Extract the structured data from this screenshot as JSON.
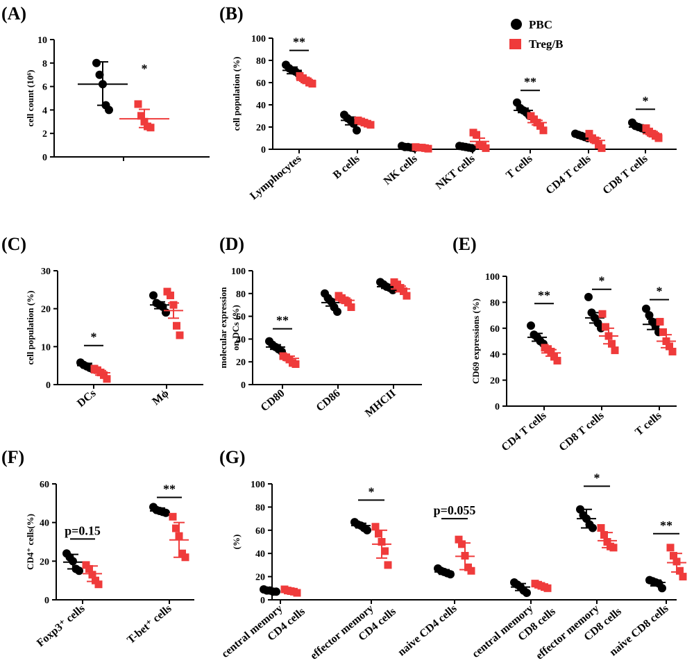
{
  "colors": {
    "pbc": "#000000",
    "treg": "#ef3b3b"
  },
  "legend": {
    "pbc": "PBC",
    "treg": "Treg/B",
    "position": "top-right of panel B"
  },
  "chart_data": [
    {
      "id": "A",
      "panel_label": "(A)",
      "type": "scatter",
      "ylabel": "cell count (10⁶)",
      "ylim": [
        0,
        10
      ],
      "yticks": [
        0,
        2,
        4,
        6,
        8,
        10
      ],
      "categories": [
        {
          "label": [
            "",
            ""
          ]
        }
      ],
      "groups": [
        {
          "cat": 0,
          "series": "pbc",
          "points": [
            8.0,
            7.0,
            6.2,
            4.4,
            4.0
          ],
          "mean": 6.2,
          "upper": 8.1,
          "lower": 4.4,
          "whisker": "sd"
        },
        {
          "cat": 0,
          "series": "treg",
          "points": [
            4.5,
            3.5,
            3.0,
            2.6,
            2.5
          ],
          "mean": 3.25,
          "upper": 4.05,
          "lower": 2.5,
          "whisker": "sd"
        }
      ],
      "significance": [
        {
          "text": "*",
          "cat": 0,
          "series": "treg",
          "y": 6.8,
          "line": false
        }
      ]
    },
    {
      "id": "B",
      "panel_label": "(B)",
      "type": "scatter",
      "ylabel": "cell population (%)",
      "ylim": [
        0,
        100
      ],
      "yticks": [
        0,
        20,
        40,
        60,
        80,
        100
      ],
      "categories": [
        {
          "label": [
            "Lymphocytes"
          ]
        },
        {
          "label": [
            "B cells"
          ]
        },
        {
          "label": [
            "NK cells"
          ]
        },
        {
          "label": [
            "NKT cells"
          ]
        },
        {
          "label": [
            "T cells"
          ]
        },
        {
          "label": [
            "CD4 T cells"
          ]
        },
        {
          "label": [
            "CD8 T cells"
          ]
        }
      ],
      "groups": [
        {
          "cat": 0,
          "series": "pbc",
          "points": [
            76,
            73,
            71,
            70,
            68
          ],
          "mean": 71,
          "upper": 74,
          "lower": 68,
          "whisker": "sem"
        },
        {
          "cat": 0,
          "series": "treg",
          "points": [
            66,
            64,
            62,
            60,
            59
          ],
          "mean": 62,
          "upper": 64,
          "lower": 60,
          "whisker": "sem"
        },
        {
          "cat": 1,
          "series": "pbc",
          "points": [
            31,
            28,
            26,
            23,
            17
          ],
          "mean": 26,
          "upper": 29,
          "lower": 22,
          "whisker": "sem"
        },
        {
          "cat": 1,
          "series": "treg",
          "points": [
            26,
            25,
            24,
            23,
            22
          ],
          "mean": 24,
          "upper": 25.5,
          "lower": 22.5,
          "whisker": "sem"
        },
        {
          "cat": 2,
          "series": "pbc",
          "points": [
            3,
            2,
            2,
            1.5,
            1
          ],
          "mean": 2,
          "upper": 2.5,
          "lower": 1.5,
          "whisker": "sem"
        },
        {
          "cat": 2,
          "series": "treg",
          "points": [
            2,
            1.5,
            1.5,
            1,
            0.5
          ],
          "mean": 1.5,
          "upper": 2,
          "lower": 1,
          "whisker": "sem"
        },
        {
          "cat": 3,
          "series": "pbc",
          "points": [
            3,
            2.5,
            2,
            1.5,
            1
          ],
          "mean": 2.5,
          "upper": 3,
          "lower": 2,
          "whisker": "sem"
        },
        {
          "cat": 3,
          "series": "treg",
          "points": [
            15,
            13,
            4,
            3,
            1
          ],
          "mean": 7,
          "upper": 10,
          "lower": 4,
          "whisker": "sem"
        },
        {
          "cat": 4,
          "series": "pbc",
          "points": [
            42,
            37,
            35,
            33,
            30
          ],
          "mean": 35,
          "upper": 37,
          "lower": 33,
          "whisker": "sem"
        },
        {
          "cat": 4,
          "series": "treg",
          "points": [
            30,
            27,
            24,
            21,
            17
          ],
          "mean": 24,
          "upper": 26,
          "lower": 22,
          "whisker": "sem"
        },
        {
          "cat": 5,
          "series": "pbc",
          "points": [
            14,
            13,
            12,
            11,
            10
          ],
          "mean": 12,
          "upper": 13,
          "lower": 11,
          "whisker": "sem"
        },
        {
          "cat": 5,
          "series": "treg",
          "points": [
            14,
            10,
            8,
            4,
            1
          ],
          "mean": 8,
          "upper": 10,
          "lower": 6,
          "whisker": "sem"
        },
        {
          "cat": 6,
          "series": "pbc",
          "points": [
            24,
            21,
            20,
            19,
            18
          ],
          "mean": 20,
          "upper": 22,
          "lower": 18.5,
          "whisker": "sem"
        },
        {
          "cat": 6,
          "series": "treg",
          "points": [
            19,
            16,
            14,
            12,
            10
          ],
          "mean": 14,
          "upper": 16,
          "lower": 12,
          "whisker": "sem"
        }
      ],
      "significance": [
        {
          "text": "**",
          "cat": 0,
          "y": 89,
          "line": true
        },
        {
          "text": "**",
          "cat": 4,
          "y": 53,
          "line": true
        },
        {
          "text": "*",
          "cat": 6,
          "y": 36,
          "line": true
        }
      ]
    },
    {
      "id": "C",
      "panel_label": "(C)",
      "type": "scatter",
      "ylabel": "cell population (%)",
      "ylim": [
        0,
        30
      ],
      "yticks": [
        0,
        10,
        20,
        30
      ],
      "categories": [
        {
          "label": [
            "DCs"
          ]
        },
        {
          "label": [
            "Mϕ"
          ]
        }
      ],
      "groups": [
        {
          "cat": 0,
          "series": "pbc",
          "points": [
            5.8,
            5.2,
            4.8,
            4.4,
            4.0
          ],
          "mean": 5.0,
          "upper": 5.6,
          "lower": 4.4,
          "whisker": "sem"
        },
        {
          "cat": 0,
          "series": "treg",
          "points": [
            4.2,
            3.8,
            3.2,
            2.5,
            1.5
          ],
          "mean": 3.1,
          "upper": 3.7,
          "lower": 2.5,
          "whisker": "sem"
        },
        {
          "cat": 1,
          "series": "pbc",
          "points": [
            23.5,
            21.5,
            21,
            20.5,
            19
          ],
          "mean": 21,
          "upper": 21.8,
          "lower": 20,
          "whisker": "sem"
        },
        {
          "cat": 1,
          "series": "treg",
          "points": [
            24.5,
            23.5,
            21,
            15.5,
            13
          ],
          "mean": 19.5,
          "upper": 21.5,
          "lower": 17.5,
          "whisker": "sem"
        }
      ],
      "significance": [
        {
          "text": "*",
          "cat": 0,
          "y": 10.3,
          "line": true
        }
      ]
    },
    {
      "id": "D",
      "panel_label": "(D)",
      "type": "scatter",
      "ylabel": [
        "molecular expression",
        "on DCs (%)"
      ],
      "ylim": [
        0,
        100
      ],
      "yticks": [
        0,
        20,
        40,
        60,
        80,
        100
      ],
      "categories": [
        {
          "label": [
            "CD80"
          ]
        },
        {
          "label": [
            "CD86"
          ]
        },
        {
          "label": [
            "MHCII"
          ]
        }
      ],
      "groups": [
        {
          "cat": 0,
          "series": "pbc",
          "points": [
            38,
            35,
            33,
            31,
            29
          ],
          "mean": 33,
          "upper": 35,
          "lower": 31,
          "whisker": "sem"
        },
        {
          "cat": 0,
          "series": "treg",
          "points": [
            25,
            24,
            22,
            19,
            18
          ],
          "mean": 23,
          "upper": 25,
          "lower": 21,
          "whisker": "sem"
        },
        {
          "cat": 1,
          "series": "pbc",
          "points": [
            80,
            76,
            73,
            68,
            64
          ],
          "mean": 72,
          "upper": 75,
          "lower": 69,
          "whisker": "sem"
        },
        {
          "cat": 1,
          "series": "treg",
          "points": [
            78,
            76,
            74,
            72,
            68
          ],
          "mean": 74,
          "upper": 76,
          "lower": 72,
          "whisker": "sem"
        },
        {
          "cat": 2,
          "series": "pbc",
          "points": [
            90,
            88,
            86,
            85,
            83
          ],
          "mean": 86,
          "upper": 87.5,
          "lower": 84.5,
          "whisker": "sem"
        },
        {
          "cat": 2,
          "series": "treg",
          "points": [
            90,
            88,
            85,
            82,
            78
          ],
          "mean": 84,
          "upper": 86.5,
          "lower": 81.5,
          "whisker": "sem"
        }
      ],
      "significance": [
        {
          "text": "**",
          "cat": 0,
          "y": 49,
          "line": true
        }
      ]
    },
    {
      "id": "E",
      "panel_label": "(E)",
      "type": "scatter",
      "ylabel": "CD69 expressions (%)",
      "ylim": [
        0,
        100
      ],
      "yticks": [
        0,
        20,
        40,
        60,
        80,
        100
      ],
      "categories": [
        {
          "label": [
            "CD4 T cells"
          ]
        },
        {
          "label": [
            "CD8 T cells"
          ]
        },
        {
          "label": [
            "T cells"
          ]
        }
      ],
      "groups": [
        {
          "cat": 0,
          "series": "pbc",
          "points": [
            62,
            55,
            53,
            50,
            48
          ],
          "mean": 53,
          "upper": 56,
          "lower": 50,
          "whisker": "sem"
        },
        {
          "cat": 0,
          "series": "treg",
          "points": [
            45,
            44,
            42,
            38,
            35
          ],
          "mean": 41,
          "upper": 43.5,
          "lower": 38.5,
          "whisker": "sem"
        },
        {
          "cat": 1,
          "series": "pbc",
          "points": [
            84,
            72,
            68,
            64,
            60
          ],
          "mean": 68,
          "upper": 72,
          "lower": 64,
          "whisker": "sem"
        },
        {
          "cat": 1,
          "series": "treg",
          "points": [
            71,
            61,
            54,
            48,
            43
          ],
          "mean": 54,
          "upper": 60,
          "lower": 48,
          "whisker": "sem"
        },
        {
          "cat": 2,
          "series": "pbc",
          "points": [
            75,
            70,
            65,
            62,
            57
          ],
          "mean": 63,
          "upper": 67,
          "lower": 59,
          "whisker": "sem"
        },
        {
          "cat": 2,
          "series": "treg",
          "points": [
            65,
            57,
            50,
            46,
            42
          ],
          "mean": 50,
          "upper": 55,
          "lower": 45,
          "whisker": "sem"
        }
      ],
      "significance": [
        {
          "text": "**",
          "cat": 0,
          "y": 79,
          "line": true
        },
        {
          "text": "*",
          "cat": 1,
          "y": 90,
          "line": true
        },
        {
          "text": "*",
          "cat": 2,
          "y": 82,
          "line": true
        }
      ]
    },
    {
      "id": "F",
      "panel_label": "(F)",
      "type": "scatter",
      "ylabel": "CD4⁺ cells(%)",
      "ylim": [
        0,
        60
      ],
      "yticks": [
        0,
        20,
        40,
        60
      ],
      "categories": [
        {
          "label": [
            "Foxp3⁺ cells"
          ]
        },
        {
          "label": [
            "T-bet⁺ cells"
          ]
        }
      ],
      "groups": [
        {
          "cat": 0,
          "series": "pbc",
          "points": [
            24,
            22,
            20,
            16,
            15
          ],
          "mean": 19.5,
          "upper": 23.5,
          "lower": 16,
          "whisker": "sd"
        },
        {
          "cat": 0,
          "series": "treg",
          "points": [
            18,
            16,
            13,
            10,
            8
          ],
          "mean": 13.5,
          "upper": 17.5,
          "lower": 9.5,
          "whisker": "sd"
        },
        {
          "cat": 1,
          "series": "pbc",
          "points": [
            48,
            46.5,
            46,
            45.5,
            45
          ],
          "mean": 46,
          "upper": 47.5,
          "lower": 45,
          "whisker": "sd"
        },
        {
          "cat": 1,
          "series": "treg",
          "points": [
            43,
            37,
            33,
            24,
            22
          ],
          "mean": 31,
          "upper": 40,
          "lower": 22,
          "whisker": "sd"
        }
      ],
      "significance": [
        {
          "text": "p=0.15",
          "cat": 0,
          "y": 31.5,
          "line": true
        },
        {
          "text": "**",
          "cat": 1,
          "y": 53,
          "line": true
        }
      ]
    },
    {
      "id": "G",
      "panel_label": "(G)",
      "type": "scatter",
      "ylabel": "(%)",
      "ylim": [
        0,
        100
      ],
      "yticks": [
        0,
        20,
        40,
        60,
        80,
        100
      ],
      "categories": [
        {
          "label": [
            "central memory",
            "CD4 cells"
          ]
        },
        {
          "label": [
            "effector memory",
            "CD4 cells"
          ]
        },
        {
          "label": [
            "naive CD4 cells"
          ]
        },
        {
          "label": [
            "central memory",
            "CD8 cells"
          ]
        },
        {
          "label": [
            "effector memory",
            "CD8 cells"
          ]
        },
        {
          "label": [
            "naive CD8 cells"
          ]
        }
      ],
      "groups": [
        {
          "cat": 0,
          "series": "pbc",
          "points": [
            9,
            8,
            8,
            7,
            7
          ],
          "mean": 8,
          "upper": 9,
          "lower": 7,
          "whisker": "sd"
        },
        {
          "cat": 0,
          "series": "treg",
          "points": [
            9,
            8,
            7.5,
            7,
            6
          ],
          "mean": 7.5,
          "upper": 8.5,
          "lower": 6.5,
          "whisker": "sd"
        },
        {
          "cat": 1,
          "series": "pbc",
          "points": [
            67,
            65,
            64,
            62,
            60
          ],
          "mean": 64,
          "upper": 66,
          "lower": 62,
          "whisker": "sd"
        },
        {
          "cat": 1,
          "series": "treg",
          "points": [
            63,
            57,
            50,
            42,
            30
          ],
          "mean": 48,
          "upper": 60,
          "lower": 36,
          "whisker": "sd"
        },
        {
          "cat": 2,
          "series": "pbc",
          "points": [
            27,
            25,
            24,
            23,
            22
          ],
          "mean": 24,
          "upper": 26,
          "lower": 22,
          "whisker": "sd"
        },
        {
          "cat": 2,
          "series": "treg",
          "points": [
            52,
            48,
            38,
            28,
            25
          ],
          "mean": 37.5,
          "upper": 49,
          "lower": 26,
          "whisker": "sd"
        },
        {
          "cat": 3,
          "series": "pbc",
          "points": [
            15,
            13,
            11,
            8,
            6
          ],
          "mean": 11,
          "upper": 14,
          "lower": 8,
          "whisker": "sd"
        },
        {
          "cat": 3,
          "series": "treg",
          "points": [
            14,
            13,
            12,
            11,
            10
          ],
          "mean": 12,
          "upper": 13.5,
          "lower": 10.5,
          "whisker": "sd"
        },
        {
          "cat": 4,
          "series": "pbc",
          "points": [
            78,
            73,
            70,
            65,
            62
          ],
          "mean": 70,
          "upper": 78,
          "lower": 62,
          "whisker": "sd"
        },
        {
          "cat": 4,
          "series": "treg",
          "points": [
            62,
            56,
            50,
            46,
            45
          ],
          "mean": 51,
          "upper": 58,
          "lower": 45,
          "whisker": "sd"
        },
        {
          "cat": 5,
          "series": "pbc",
          "points": [
            17,
            16,
            15,
            14,
            10
          ],
          "mean": 15,
          "upper": 17,
          "lower": 12,
          "whisker": "sd"
        },
        {
          "cat": 5,
          "series": "treg",
          "points": [
            45,
            38,
            33,
            25,
            20
          ],
          "mean": 32,
          "upper": 40,
          "lower": 24,
          "whisker": "sd"
        }
      ],
      "significance": [
        {
          "text": "*",
          "cat": 1,
          "y": 86,
          "line": true
        },
        {
          "text": "p=0.055",
          "cat": 2,
          "y": 70,
          "line": true
        },
        {
          "text": "*",
          "cat": 4,
          "y": 98,
          "line": true
        },
        {
          "text": "**",
          "cat": 5,
          "y": 57,
          "line": true
        }
      ]
    }
  ]
}
